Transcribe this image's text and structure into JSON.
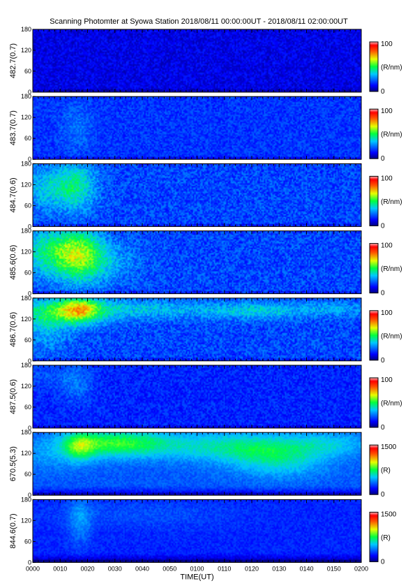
{
  "title": "Scanning Photomter at Syowa Station 2018/08/11 00:00:00UT - 2018/08/11 02:00:00UT",
  "chart_data": {
    "type": "heatmap",
    "xlabel": "TIME(UT)",
    "x_ticks": [
      "0000",
      "0010",
      "0020",
      "0030",
      "0040",
      "0050",
      "0100",
      "0110",
      "0120",
      "0130",
      "0140",
      "0150",
      "0200"
    ],
    "xlim_minutes": [
      0,
      120
    ],
    "panels": [
      {
        "ylabel": "482.7(0.7)",
        "ylim": [
          0,
          180
        ],
        "y_ticks": [
          0,
          60,
          120,
          180
        ],
        "colorbar": {
          "min": 0,
          "max": 100,
          "unit": "(R/nm)"
        },
        "base": 0.1,
        "noise": 0.06,
        "blobs": []
      },
      {
        "ylabel": "483.7(0.7)",
        "ylim": [
          0,
          180
        ],
        "y_ticks": [
          0,
          60,
          120,
          180
        ],
        "colorbar": {
          "min": 0,
          "max": 100,
          "unit": "(R/nm)"
        },
        "base": 0.18,
        "noise": 0.06,
        "blobs": [
          {
            "t": 16,
            "a": 90,
            "st": 4,
            "sa": 50,
            "amp": 0.07
          }
        ]
      },
      {
        "ylabel": "484.7(0.6)",
        "ylim": [
          0,
          180
        ],
        "y_ticks": [
          0,
          60,
          120,
          180
        ],
        "colorbar": {
          "min": 0,
          "max": 100,
          "unit": "(R/nm)"
        },
        "base": 0.2,
        "noise": 0.08,
        "blobs": [
          {
            "t": 6,
            "a": 110,
            "st": 8,
            "sa": 45,
            "amp": 0.16
          },
          {
            "t": 16,
            "a": 120,
            "st": 5,
            "sa": 50,
            "amp": 0.18
          }
        ]
      },
      {
        "ylabel": "485.6(0.6)",
        "ylim": [
          0,
          180
        ],
        "y_ticks": [
          0,
          60,
          120,
          180
        ],
        "colorbar": {
          "min": 0,
          "max": 100,
          "unit": "(R/nm)"
        },
        "base": 0.2,
        "noise": 0.08,
        "blobs": [
          {
            "t": 7,
            "a": 120,
            "st": 9,
            "sa": 50,
            "amp": 0.24
          },
          {
            "t": 17,
            "a": 110,
            "st": 6,
            "sa": 55,
            "amp": 0.28
          },
          {
            "t": 28,
            "a": 90,
            "st": 8,
            "sa": 45,
            "amp": 0.1
          }
        ]
      },
      {
        "ylabel": "486.7(0.6)",
        "ylim": [
          0,
          180
        ],
        "y_ticks": [
          0,
          60,
          120,
          180
        ],
        "colorbar": {
          "min": 0,
          "max": 100,
          "unit": "(R/nm)"
        },
        "base": 0.2,
        "noise": 0.08,
        "blobs": [
          {
            "t": 10,
            "a": 140,
            "st": 12,
            "sa": 30,
            "amp": 0.26
          },
          {
            "t": 17,
            "a": 150,
            "st": 5,
            "sa": 25,
            "amp": 0.28
          },
          {
            "t": 40,
            "a": 150,
            "st": 18,
            "sa": 20,
            "amp": 0.14
          },
          {
            "t": 82,
            "a": 145,
            "st": 14,
            "sa": 18,
            "amp": 0.16
          },
          {
            "t": 112,
            "a": 150,
            "st": 10,
            "sa": 15,
            "amp": 0.1
          },
          {
            "t": 5,
            "a": 80,
            "st": 6,
            "sa": 40,
            "amp": 0.1
          }
        ]
      },
      {
        "ylabel": "487.5(0.6)",
        "ylim": [
          0,
          180
        ],
        "y_ticks": [
          0,
          60,
          120,
          180
        ],
        "colorbar": {
          "min": 0,
          "max": 100,
          "unit": "(R/nm)"
        },
        "base": 0.16,
        "noise": 0.06,
        "blobs": [
          {
            "t": 16,
            "a": 130,
            "st": 4,
            "sa": 40,
            "amp": 0.09
          },
          {
            "t": 5,
            "a": 150,
            "st": 8,
            "sa": 30,
            "amp": 0.05
          }
        ]
      },
      {
        "ylabel": "670.5(5.3)",
        "ylim": [
          0,
          180
        ],
        "y_ticks": [
          0,
          60,
          120,
          180
        ],
        "colorbar": {
          "min": 0,
          "max": 1500,
          "unit": "(R)"
        },
        "base": 0.22,
        "noise": 0.04,
        "blobs": [
          {
            "t": 30,
            "a": 150,
            "st": 14,
            "sa": 28,
            "amp": 0.3
          },
          {
            "t": 17,
            "a": 140,
            "st": 4,
            "sa": 30,
            "amp": 0.22
          },
          {
            "t": 75,
            "a": 140,
            "st": 20,
            "sa": 30,
            "amp": 0.2
          },
          {
            "t": 90,
            "a": 100,
            "st": 12,
            "sa": 35,
            "amp": 0.16
          },
          {
            "t": 110,
            "a": 150,
            "st": 10,
            "sa": 25,
            "amp": 0.1
          },
          {
            "t": 5,
            "a": 110,
            "st": 8,
            "sa": 30,
            "amp": 0.06
          }
        ],
        "dark_bottom": true
      },
      {
        "ylabel": "844.6(0.7)",
        "ylim": [
          0,
          180
        ],
        "y_ticks": [
          0,
          60,
          120,
          180
        ],
        "colorbar": {
          "min": 0,
          "max": 1500,
          "unit": "(R)"
        },
        "base": 0.16,
        "noise": 0.04,
        "blobs": [
          {
            "t": 17,
            "a": 120,
            "st": 3,
            "sa": 50,
            "amp": 0.12
          },
          {
            "t": 40,
            "a": 140,
            "st": 25,
            "sa": 30,
            "amp": 0.05
          }
        ],
        "dark_bottom": true
      }
    ]
  }
}
